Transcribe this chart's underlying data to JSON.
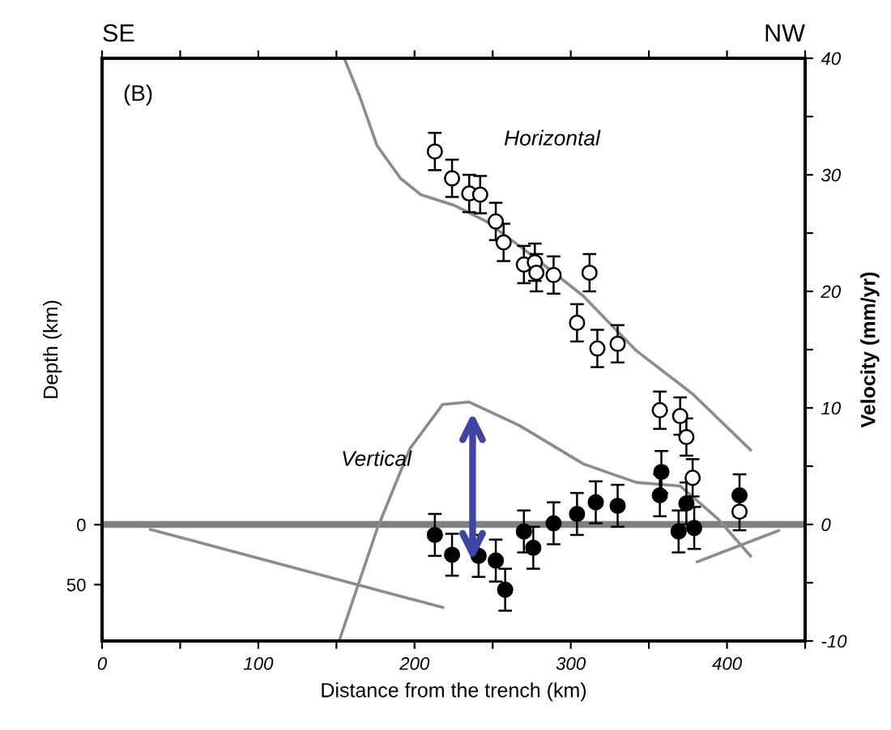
{
  "chart_data": {
    "type": "scatter",
    "xlabel": "Distance from the trench (km)",
    "ylabel": "Velocity (mm/yr)",
    "y2label": "Depth (km)",
    "xlim": [
      0,
      450
    ],
    "xticks": [
      0,
      {
        "value": 50,
        "label": null
      },
      100,
      {
        "value": 150,
        "label": null
      },
      200,
      {
        "value": 250,
        "label": null
      },
      300,
      {
        "value": 350,
        "label": null
      },
      400,
      {
        "value": 450,
        "label": null
      }
    ],
    "ylim": [
      -10,
      40
    ],
    "yticks": [
      -10,
      {
        "value": -5,
        "label": null
      },
      0,
      {
        "value": 5,
        "label": null
      },
      10,
      {
        "value": 15,
        "label": null
      },
      20,
      {
        "value": 25,
        "label": null
      },
      30,
      {
        "value": 35,
        "label": null
      },
      40
    ],
    "y2lim": [
      97,
      -389
    ],
    "y2ticks": [
      0,
      50
    ],
    "grid": false,
    "ref_lines": [
      {
        "axis": "y",
        "value": 0,
        "color": "#808080"
      }
    ],
    "series": [
      {
        "type": "line",
        "color": "#8c8c8c",
        "x": [
          155,
          165,
          176,
          191,
          204,
          225,
          246,
          274,
          308,
          342,
          378,
          415
        ],
        "values": [
          40,
          36.7,
          32.5,
          29.7,
          28.3,
          27.4,
          26.0,
          23.2,
          19.6,
          14.9,
          11.2,
          6.4
        ]
      },
      {
        "type": "line",
        "color": "#8c8c8c",
        "x": [
          152,
          176,
          197,
          218,
          235,
          267,
          308,
          342,
          370,
          394,
          415
        ],
        "values": [
          -9.9,
          -0.4,
          6.5,
          10.3,
          10.5,
          8.5,
          5.2,
          3.6,
          3.3,
          0.5,
          -2.7
        ]
      },
      {
        "type": "line",
        "axis": "y2",
        "color": "#8c8c8c",
        "x": [
          31,
          218
        ],
        "values": [
          4,
          69
        ]
      },
      {
        "type": "line",
        "axis": "y2",
        "color": "#8c8c8c",
        "x": [
          381,
          433
        ],
        "values": [
          31,
          5
        ]
      },
      {
        "marker": "circle",
        "color": "#ffffff",
        "x": [
          213,
          224,
          235,
          242,
          252,
          257,
          270,
          277,
          278,
          289,
          312,
          304,
          317,
          330,
          357,
          370,
          374,
          378,
          408
        ],
        "values": [
          32.0,
          29.7,
          28.4,
          28.3,
          26.0,
          24.2,
          22.3,
          22.5,
          21.6,
          21.4,
          21.6,
          17.3,
          15.1,
          15.5,
          9.8,
          9.3,
          7.5,
          4.0,
          1.1
        ],
        "errors": [
          1.6,
          1.6,
          1.6,
          1.6,
          1.6,
          1.6,
          1.6,
          1.6,
          1.6,
          1.6,
          1.6,
          1.6,
          1.6,
          1.6,
          1.6,
          1.6,
          1.6,
          1.6,
          1.6
        ]
      },
      {
        "marker": "circle",
        "color": "#000000",
        "x": [
          213,
          224,
          241,
          252,
          258,
          270,
          276,
          289,
          304,
          316,
          330,
          358,
          357,
          374,
          369,
          379,
          408
        ],
        "values": [
          -0.9,
          -2.6,
          -2.7,
          -3.1,
          -5.6,
          -0.6,
          -2.0,
          0.1,
          0.9,
          1.9,
          1.6,
          4.5,
          2.5,
          1.8,
          -0.6,
          -0.3,
          2.5
        ],
        "errors": [
          1.8,
          1.8,
          1.8,
          1.8,
          1.8,
          1.8,
          1.8,
          1.8,
          1.8,
          1.8,
          1.8,
          1.8,
          1.8,
          1.8,
          1.8,
          1.8,
          1.8
        ]
      }
    ],
    "annotations": [
      "SE",
      "NW",
      "(B)",
      "Horizontal",
      "Vertical"
    ]
  }
}
